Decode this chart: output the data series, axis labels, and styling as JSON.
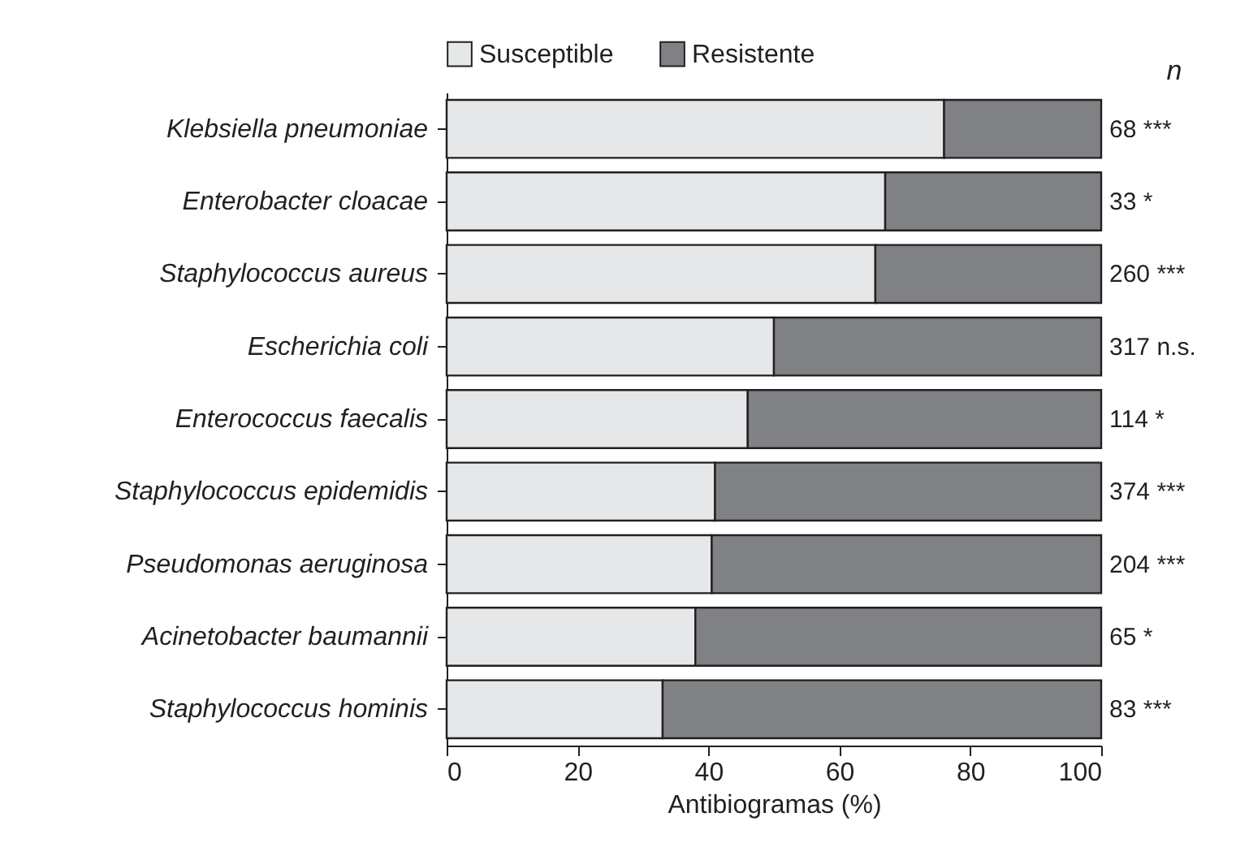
{
  "chart_data": {
    "type": "bar",
    "orientation": "horizontal",
    "stacked": true,
    "xlabel": "Antibiogramas (%)",
    "categories": [
      "Klebsiella pneumoniae",
      "Enterobacter cloacae",
      "Staphylococcus aureus",
      "Escherichia coli",
      "Enterococcus faecalis",
      "Staphylococcus epidemidis",
      "Pseudomonas aeruginosa",
      "Acinetobacter baumannii",
      "Staphylococcus hominis"
    ],
    "series": [
      {
        "name": "Susceptible",
        "color": "#e6e7e8",
        "values": [
          76,
          67,
          65.5,
          50,
          46,
          41,
          40.5,
          38,
          33
        ]
      },
      {
        "name": "Resistente",
        "color": "#808184",
        "values": [
          24,
          33,
          34.5,
          50,
          54,
          59,
          59.5,
          62,
          67
        ]
      }
    ],
    "xlim": [
      0,
      100
    ],
    "xticks": [
      0,
      20,
      40,
      60,
      80,
      100
    ],
    "legend": "top",
    "grid": false,
    "annotations": [
      "n",
      "68 ***",
      "33 *",
      "260 ***",
      "317 n.s.",
      "114 *",
      "374 ***",
      "204 ***",
      "65 *",
      "83 ***"
    ]
  }
}
